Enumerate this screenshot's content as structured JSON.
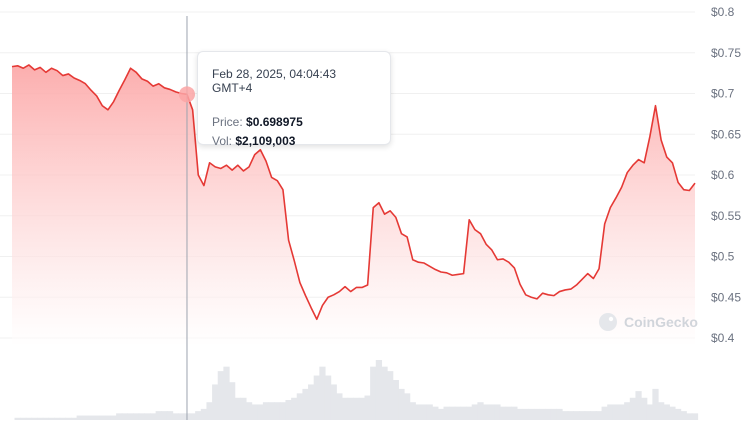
{
  "chart_data": {
    "type": "area",
    "title": "",
    "xlabel": "",
    "ylabel": "",
    "ylim": [
      0.4,
      0.8
    ],
    "y_ticks": [
      "$0.8",
      "$0.75",
      "$0.7",
      "$0.65",
      "$0.6",
      "$0.55",
      "$0.5",
      "$0.45",
      "$0.4"
    ],
    "y_tick_values": [
      0.8,
      0.75,
      0.7,
      0.65,
      0.6,
      0.55,
      0.5,
      0.45,
      0.4
    ],
    "grid": true,
    "series": [
      {
        "values": [
          0.733,
          0.734,
          0.731,
          0.735,
          0.729,
          0.732,
          0.726,
          0.731,
          0.728,
          0.722,
          0.724,
          0.719,
          0.716,
          0.712,
          0.704,
          0.697,
          0.685,
          0.68,
          0.69,
          0.704,
          0.717,
          0.731,
          0.726,
          0.718,
          0.715,
          0.709,
          0.712,
          0.707,
          0.705,
          0.702,
          0.7,
          0.699,
          0.68,
          0.6,
          0.587,
          0.615,
          0.61,
          0.608,
          0.612,
          0.606,
          0.612,
          0.605,
          0.61,
          0.625,
          0.631,
          0.617,
          0.597,
          0.593,
          0.582,
          0.52,
          0.495,
          0.468,
          0.452,
          0.437,
          0.423,
          0.44,
          0.45,
          0.453,
          0.457,
          0.463,
          0.457,
          0.462,
          0.462,
          0.465,
          0.56,
          0.566,
          0.552,
          0.556,
          0.548,
          0.528,
          0.524,
          0.496,
          0.493,
          0.492,
          0.488,
          0.484,
          0.481,
          0.48,
          0.477,
          0.478,
          0.479,
          0.545,
          0.533,
          0.528,
          0.515,
          0.508,
          0.496,
          0.497,
          0.493,
          0.486,
          0.466,
          0.453,
          0.45,
          0.448,
          0.455,
          0.453,
          0.452,
          0.457,
          0.459,
          0.46,
          0.465,
          0.472,
          0.479,
          0.473,
          0.485,
          0.54,
          0.56,
          0.572,
          0.585,
          0.603,
          0.612,
          0.619,
          0.615,
          0.647,
          0.685,
          0.643,
          0.622,
          0.615,
          0.591,
          0.582,
          0.581,
          0.59
        ]
      }
    ],
    "volume": [
      0,
      1,
      1,
      1,
      1,
      1,
      1,
      1,
      1,
      1,
      1,
      1,
      2,
      2,
      2,
      2,
      2,
      2,
      2,
      3,
      3,
      3,
      3,
      3,
      3,
      3,
      4,
      4,
      4,
      3,
      3,
      3,
      3,
      4,
      5,
      8,
      16,
      22,
      24,
      17,
      10,
      10,
      8,
      7,
      7,
      8,
      8,
      8,
      8,
      9,
      10,
      12,
      14,
      16,
      20,
      24,
      20,
      16,
      12,
      10,
      10,
      10,
      10,
      11,
      24,
      27,
      24,
      22,
      18,
      14,
      12,
      8,
      7,
      7,
      7,
      6,
      5,
      6,
      6,
      6,
      6,
      6,
      7,
      8,
      7,
      7,
      7,
      6,
      6,
      6,
      5,
      5,
      5,
      5,
      5,
      5,
      5,
      5,
      4,
      4,
      4,
      4,
      4,
      4,
      4,
      6,
      7,
      7,
      7,
      8,
      10,
      13,
      10,
      7,
      14,
      8,
      7,
      6,
      5,
      4,
      3,
      3
    ],
    "tooltip": {
      "date": "Feb 28, 2025, 04:04:43 GMT+4",
      "price_label": "Price:",
      "price_value": "$0.698975",
      "vol_label": "Vol:",
      "vol_value": "$2,109,003"
    },
    "highlight_index": 31,
    "watermark": "CoinGecko",
    "colors": {
      "line": "#e53935",
      "area_top": "#fca5a5",
      "area_bottom": "#ffffff",
      "volume": "#e5e7eb",
      "grid": "#f0f0f0",
      "crosshair": "#9ca3af"
    }
  }
}
